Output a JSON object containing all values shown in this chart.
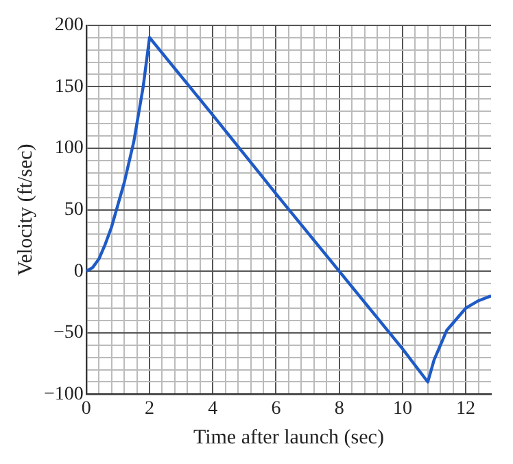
{
  "chart_data": {
    "type": "line",
    "xlabel": "Time after launch (sec)",
    "ylabel": "Velocity (ft/sec)",
    "xlim": [
      0,
      12.8
    ],
    "ylim": [
      -100,
      200
    ],
    "xticks": [
      0,
      {
        "value": 0.4,
        "label": null
      },
      {
        "value": 0.8,
        "label": null
      },
      {
        "value": 1.2,
        "label": null
      },
      {
        "value": 1.6,
        "label": null
      },
      2,
      {
        "value": 2.4,
        "label": null
      },
      {
        "value": 2.8,
        "label": null
      },
      {
        "value": 3.2,
        "label": null
      },
      {
        "value": 3.6,
        "label": null
      },
      4,
      {
        "value": 4.4,
        "label": null
      },
      {
        "value": 4.8,
        "label": null
      },
      {
        "value": 5.2,
        "label": null
      },
      {
        "value": 5.6,
        "label": null
      },
      6,
      {
        "value": 6.4,
        "label": null
      },
      {
        "value": 6.8,
        "label": null
      },
      {
        "value": 7.2,
        "label": null
      },
      {
        "value": 7.6,
        "label": null
      },
      8,
      {
        "value": 8.4,
        "label": null
      },
      {
        "value": 8.8,
        "label": null
      },
      {
        "value": 9.2,
        "label": null
      },
      {
        "value": 9.6,
        "label": null
      },
      10,
      {
        "value": 10.4,
        "label": null
      },
      {
        "value": 10.8,
        "label": null
      },
      {
        "value": 11.2,
        "label": null
      },
      {
        "value": 11.6,
        "label": null
      },
      12,
      {
        "value": 12.4,
        "label": null
      }
    ],
    "yticks": [
      -100,
      {
        "value": -90,
        "label": null
      },
      {
        "value": -80,
        "label": null
      },
      {
        "value": -70,
        "label": null
      },
      {
        "value": -60,
        "label": null
      },
      -50,
      {
        "value": -40,
        "label": null
      },
      {
        "value": -30,
        "label": null
      },
      {
        "value": -20,
        "label": null
      },
      {
        "value": -10,
        "label": null
      },
      0,
      {
        "value": 10,
        "label": null
      },
      {
        "value": 20,
        "label": null
      },
      {
        "value": 30,
        "label": null
      },
      {
        "value": 40,
        "label": null
      },
      50,
      {
        "value": 60,
        "label": null
      },
      {
        "value": 70,
        "label": null
      },
      {
        "value": 80,
        "label": null
      },
      {
        "value": 90,
        "label": null
      },
      100,
      {
        "value": 110,
        "label": null
      },
      {
        "value": 120,
        "label": null
      },
      {
        "value": 130,
        "label": null
      },
      {
        "value": 140,
        "label": null
      },
      150,
      {
        "value": 160,
        "label": null
      },
      {
        "value": 170,
        "label": null
      },
      {
        "value": 180,
        "label": null
      },
      {
        "value": 190,
        "label": null
      },
      200
    ],
    "grid": true,
    "marker": "none",
    "line_style": "solid",
    "series": [
      {
        "color": "#1f5bc6",
        "x": [
          0,
          0.2,
          0.4,
          0.6,
          0.8,
          1.0,
          1.2,
          1.5,
          1.8,
          2,
          4,
          6,
          8,
          10,
          10.8,
          11,
          11.4,
          12,
          12.4,
          12.8
        ],
        "values": [
          0,
          3,
          10,
          22,
          36,
          54,
          72,
          105,
          150,
          190,
          127,
          63,
          0,
          -63,
          -90,
          -72,
          -48,
          -30,
          -24,
          -20
        ]
      }
    ]
  }
}
